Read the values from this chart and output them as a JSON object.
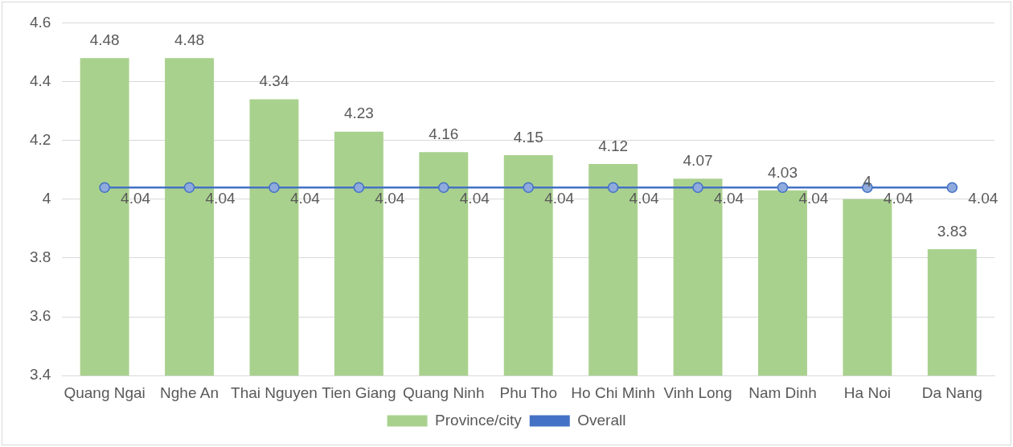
{
  "chart_data": {
    "type": "bar",
    "categories": [
      "Quang Ngai",
      "Nghe An",
      "Thai Nguyen",
      "Tien Giang",
      "Quang Ninh",
      "Phu Tho",
      "Ho Chi Minh",
      "Vinh Long",
      "Nam Dinh",
      "Ha Noi",
      "Da Nang"
    ],
    "series": [
      {
        "name": "Province/city",
        "color": "#a9d18e",
        "values": [
          4.48,
          4.48,
          4.34,
          4.23,
          4.16,
          4.15,
          4.12,
          4.07,
          4.03,
          4,
          3.83
        ]
      },
      {
        "name": "Overall",
        "type": "line",
        "color": "#4472c4",
        "values": [
          4.04,
          4.04,
          4.04,
          4.04,
          4.04,
          4.04,
          4.04,
          4.04,
          4.04,
          4.04,
          4.04
        ]
      }
    ],
    "ylim": [
      3.4,
      4.6
    ],
    "yticks": [
      3.4,
      3.6,
      3.8,
      4,
      4.2,
      4.4,
      4.6
    ],
    "grid": "y",
    "legend": "bottom",
    "marker": "circle",
    "line_style": "solid",
    "data_labels": true
  }
}
